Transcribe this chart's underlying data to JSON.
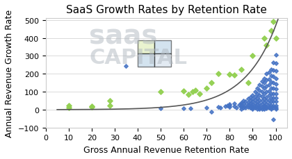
{
  "title": "SaaS Growth Rates by Retention Rate",
  "xlabel": "Gross Annual Revenue Retention Rate",
  "ylabel": "Annual Revenue Growth Rate",
  "xlim": [
    0,
    105
  ],
  "ylim": [
    -100,
    510
  ],
  "xticks": [
    0,
    10,
    20,
    30,
    40,
    50,
    60,
    70,
    80,
    90,
    100
  ],
  "yticks": [
    -100,
    0,
    100,
    200,
    300,
    400,
    500
  ],
  "blue_points": [
    [
      35,
      245
    ],
    [
      50,
      8
    ],
    [
      60,
      8
    ],
    [
      63,
      7
    ],
    [
      70,
      12
    ],
    [
      72,
      -10
    ],
    [
      75,
      15
    ],
    [
      76,
      10
    ],
    [
      78,
      18
    ],
    [
      79,
      22
    ],
    [
      80,
      30
    ],
    [
      80,
      25
    ],
    [
      80,
      15
    ],
    [
      82,
      35
    ],
    [
      82,
      20
    ],
    [
      83,
      10
    ],
    [
      84,
      28
    ],
    [
      85,
      40
    ],
    [
      85,
      30
    ],
    [
      85,
      20
    ],
    [
      85,
      15
    ],
    [
      85,
      5
    ],
    [
      86,
      50
    ],
    [
      86,
      35
    ],
    [
      86,
      10
    ],
    [
      87,
      45
    ],
    [
      87,
      25
    ],
    [
      87,
      12
    ],
    [
      88,
      60
    ],
    [
      88,
      40
    ],
    [
      88,
      28
    ],
    [
      88,
      15
    ],
    [
      89,
      70
    ],
    [
      89,
      50
    ],
    [
      89,
      35
    ],
    [
      89,
      20
    ],
    [
      89,
      10
    ],
    [
      90,
      80
    ],
    [
      90,
      60
    ],
    [
      90,
      45
    ],
    [
      90,
      30
    ],
    [
      90,
      20
    ],
    [
      90,
      10
    ],
    [
      90,
      5
    ],
    [
      91,
      100
    ],
    [
      91,
      75
    ],
    [
      91,
      55
    ],
    [
      91,
      35
    ],
    [
      91,
      20
    ],
    [
      91,
      10
    ],
    [
      92,
      120
    ],
    [
      92,
      90
    ],
    [
      92,
      65
    ],
    [
      92,
      45
    ],
    [
      92,
      30
    ],
    [
      92,
      15
    ],
    [
      92,
      5
    ],
    [
      93,
      140
    ],
    [
      93,
      110
    ],
    [
      93,
      80
    ],
    [
      93,
      55
    ],
    [
      93,
      35
    ],
    [
      93,
      20
    ],
    [
      93,
      10
    ],
    [
      93,
      5
    ],
    [
      94,
      160
    ],
    [
      94,
      130
    ],
    [
      94,
      100
    ],
    [
      94,
      75
    ],
    [
      94,
      50
    ],
    [
      94,
      30
    ],
    [
      94,
      15
    ],
    [
      94,
      5
    ],
    [
      95,
      175
    ],
    [
      95,
      150
    ],
    [
      95,
      120
    ],
    [
      95,
      90
    ],
    [
      95,
      60
    ],
    [
      95,
      40
    ],
    [
      95,
      25
    ],
    [
      95,
      15
    ],
    [
      95,
      5
    ],
    [
      96,
      200
    ],
    [
      96,
      165
    ],
    [
      96,
      130
    ],
    [
      96,
      100
    ],
    [
      96,
      70
    ],
    [
      96,
      50
    ],
    [
      96,
      30
    ],
    [
      96,
      15
    ],
    [
      96,
      8
    ],
    [
      97,
      210
    ],
    [
      97,
      170
    ],
    [
      97,
      140
    ],
    [
      97,
      105
    ],
    [
      97,
      80
    ],
    [
      97,
      55
    ],
    [
      97,
      35
    ],
    [
      97,
      20
    ],
    [
      97,
      10
    ],
    [
      98,
      225
    ],
    [
      98,
      190
    ],
    [
      98,
      155
    ],
    [
      98,
      120
    ],
    [
      98,
      90
    ],
    [
      98,
      65
    ],
    [
      98,
      45
    ],
    [
      98,
      25
    ],
    [
      98,
      10
    ],
    [
      98,
      5
    ],
    [
      99,
      265
    ],
    [
      99,
      220
    ],
    [
      99,
      185
    ],
    [
      99,
      150
    ],
    [
      99,
      120
    ],
    [
      99,
      90
    ],
    [
      99,
      65
    ],
    [
      99,
      45
    ],
    [
      99,
      25
    ],
    [
      99,
      10
    ],
    [
      99,
      -55
    ],
    [
      100,
      305
    ],
    [
      100,
      260
    ],
    [
      100,
      215
    ],
    [
      100,
      175
    ],
    [
      100,
      145
    ],
    [
      100,
      115
    ],
    [
      100,
      90
    ],
    [
      100,
      65
    ],
    [
      100,
      45
    ],
    [
      100,
      25
    ],
    [
      100,
      10
    ],
    [
      100,
      5
    ]
  ],
  "green_points": [
    [
      10,
      25
    ],
    [
      10,
      12
    ],
    [
      20,
      18
    ],
    [
      20,
      15
    ],
    [
      28,
      50
    ],
    [
      28,
      22
    ],
    [
      50,
      100
    ],
    [
      60,
      105
    ],
    [
      62,
      85
    ],
    [
      64,
      100
    ],
    [
      65,
      110
    ],
    [
      67,
      90
    ],
    [
      70,
      120
    ],
    [
      72,
      150
    ],
    [
      75,
      200
    ],
    [
      80,
      198
    ],
    [
      82,
      195
    ],
    [
      85,
      225
    ],
    [
      88,
      150
    ],
    [
      90,
      302
    ],
    [
      95,
      398
    ],
    [
      96,
      360
    ],
    [
      98,
      443
    ],
    [
      99,
      490
    ],
    [
      100,
      400
    ]
  ],
  "curve_color": "#555555",
  "blue_color": "#4472C4",
  "green_color": "#92D050",
  "background_color": "#ffffff",
  "plot_bg_color": "#ffffff",
  "grid_color": "#cccccc",
  "watermark_text1": "saas",
  "watermark_text2": "CAPITAL",
  "title_fontsize": 11,
  "axis_label_fontsize": 9,
  "tick_fontsize": 8
}
